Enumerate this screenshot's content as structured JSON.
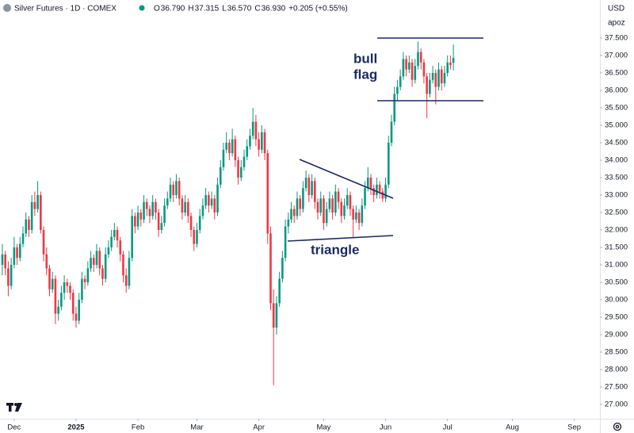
{
  "header": {
    "title": "Silver Futures · 1D · COMEX",
    "ohlc_labels": [
      "O",
      "H",
      "L",
      "C"
    ],
    "ohlc_values": [
      "36.790",
      "37.315",
      "36.570",
      "36.930"
    ],
    "change": "+0.205 (+0.55%)",
    "currency": "USD",
    "scale_label": "apoz"
  },
  "annotations": {
    "flag": [
      "bull",
      "flag"
    ],
    "triangle": "triangle"
  },
  "chart_data": {
    "type": "candlestick",
    "up_color": "#089981",
    "down_color": "#f23645",
    "grid": false,
    "xlim": [
      -0.8,
      202.7
    ],
    "xticks": [
      {
        "value": 4,
        "label": "Dec"
      },
      {
        "value": 25,
        "label": "2025"
      },
      {
        "value": 46,
        "label": "Feb"
      },
      {
        "value": 66,
        "label": "Mar"
      },
      {
        "value": 87,
        "label": "Apr"
      },
      {
        "value": 109,
        "label": "May"
      },
      {
        "value": 130,
        "label": "Jun"
      },
      {
        "value": 151,
        "label": "Jul"
      },
      {
        "value": 173,
        "label": "Aug"
      },
      {
        "value": 194,
        "label": "Sep"
      }
    ],
    "ylim": [
      26.59,
      38.59
    ],
    "yticks": [
      {
        "value": 27,
        "label": "27.000"
      },
      {
        "value": 27.5,
        "label": "27.500"
      },
      {
        "value": 28,
        "label": "28.000"
      },
      {
        "value": 28.5,
        "label": "28.500"
      },
      {
        "value": 29,
        "label": "29.000"
      },
      {
        "value": 29.5,
        "label": "29.500"
      },
      {
        "value": 30,
        "label": "30.000"
      },
      {
        "value": 30.5,
        "label": "30.500"
      },
      {
        "value": 31,
        "label": "31.000"
      },
      {
        "value": 31.5,
        "label": "31.500"
      },
      {
        "value": 32,
        "label": "32.000"
      },
      {
        "value": 32.5,
        "label": "32.500"
      },
      {
        "value": 33,
        "label": "33.000"
      },
      {
        "value": 33.5,
        "label": "33.500"
      },
      {
        "value": 34,
        "label": "34.000"
      },
      {
        "value": 34.5,
        "label": "34.500"
      },
      {
        "value": 35,
        "label": "35.000"
      },
      {
        "value": 35.5,
        "label": "35.500"
      },
      {
        "value": 36,
        "label": "36.000"
      },
      {
        "value": 36.5,
        "label": "36.500"
      },
      {
        "value": 37,
        "label": "37.000"
      },
      {
        "value": 37.5,
        "label": "37.500"
      }
    ],
    "ohlc": [
      [
        31.0,
        31.6,
        30.7,
        31.3
      ],
      [
        31.3,
        31.4,
        30.7,
        30.9
      ],
      [
        30.9,
        31.1,
        30.1,
        30.4
      ],
      [
        30.4,
        31.2,
        30.3,
        31.0
      ],
      [
        31.0,
        31.8,
        30.9,
        31.5
      ],
      [
        31.5,
        31.6,
        31.0,
        31.2
      ],
      [
        31.2,
        31.8,
        31.1,
        31.6
      ],
      [
        31.6,
        32.1,
        31.5,
        31.9
      ],
      [
        31.9,
        32.5,
        31.8,
        32.3
      ],
      [
        32.3,
        32.4,
        31.8,
        32.0
      ],
      [
        32.0,
        33.0,
        31.9,
        32.8
      ],
      [
        32.8,
        33.1,
        32.4,
        32.6
      ],
      [
        32.6,
        33.4,
        32.5,
        33.0
      ],
      [
        33.0,
        33.1,
        31.9,
        32.0
      ],
      [
        32.0,
        32.1,
        31.1,
        31.3
      ],
      [
        31.3,
        31.5,
        30.7,
        30.9
      ],
      [
        30.9,
        31.0,
        30.1,
        30.3
      ],
      [
        30.3,
        30.8,
        30.2,
        30.6
      ],
      [
        30.6,
        30.7,
        29.3,
        29.6
      ],
      [
        29.6,
        30.0,
        29.4,
        29.8
      ],
      [
        29.8,
        30.4,
        29.7,
        30.2
      ],
      [
        30.2,
        30.7,
        30.0,
        30.5
      ],
      [
        30.5,
        30.6,
        30.2,
        30.4
      ],
      [
        30.4,
        30.5,
        30.0,
        30.2
      ],
      [
        30.2,
        30.3,
        29.4,
        29.6
      ],
      [
        29.6,
        29.8,
        29.2,
        29.4
      ],
      [
        29.4,
        30.2,
        29.3,
        30.0
      ],
      [
        30.0,
        30.8,
        29.9,
        30.6
      ],
      [
        30.6,
        30.7,
        30.3,
        30.5
      ],
      [
        30.5,
        31.1,
        30.4,
        30.9
      ],
      [
        30.9,
        31.4,
        30.8,
        31.2
      ],
      [
        31.2,
        31.3,
        30.8,
        31.0
      ],
      [
        31.0,
        31.6,
        30.9,
        31.4
      ],
      [
        31.4,
        31.5,
        30.7,
        30.9
      ],
      [
        30.9,
        31.0,
        30.4,
        30.6
      ],
      [
        30.6,
        31.5,
        30.5,
        31.3
      ],
      [
        31.3,
        31.7,
        31.2,
        31.5
      ],
      [
        31.5,
        32.0,
        31.4,
        31.8
      ],
      [
        31.8,
        32.2,
        31.7,
        32.0
      ],
      [
        32.0,
        32.1,
        31.5,
        31.7
      ],
      [
        31.7,
        31.8,
        31.1,
        31.3
      ],
      [
        31.3,
        31.4,
        30.5,
        30.7
      ],
      [
        30.7,
        30.9,
        30.2,
        30.4
      ],
      [
        30.4,
        31.4,
        30.3,
        31.2
      ],
      [
        31.2,
        32.6,
        31.1,
        32.4
      ],
      [
        32.4,
        32.5,
        31.9,
        32.1
      ],
      [
        32.1,
        32.7,
        32.0,
        32.5
      ],
      [
        32.5,
        32.6,
        32.1,
        32.3
      ],
      [
        32.3,
        33.0,
        32.2,
        32.8
      ],
      [
        32.8,
        32.9,
        32.4,
        32.6
      ],
      [
        32.6,
        32.7,
        32.2,
        32.4
      ],
      [
        32.4,
        33.0,
        32.3,
        32.8
      ],
      [
        32.8,
        32.9,
        32.3,
        32.5
      ],
      [
        32.5,
        32.6,
        31.8,
        32.0
      ],
      [
        32.0,
        32.4,
        31.9,
        32.2
      ],
      [
        32.2,
        32.9,
        32.1,
        32.7
      ],
      [
        32.7,
        33.1,
        32.6,
        32.9
      ],
      [
        32.9,
        33.5,
        32.8,
        33.3
      ],
      [
        33.3,
        33.4,
        32.8,
        33.0
      ],
      [
        33.0,
        33.6,
        32.9,
        33.4
      ],
      [
        33.4,
        33.5,
        32.7,
        32.9
      ],
      [
        32.9,
        33.0,
        32.3,
        32.5
      ],
      [
        32.5,
        33.0,
        32.4,
        32.8
      ],
      [
        32.8,
        32.9,
        32.2,
        32.4
      ],
      [
        32.4,
        32.5,
        31.8,
        32.0
      ],
      [
        32.0,
        32.1,
        31.4,
        31.6
      ],
      [
        31.6,
        32.2,
        31.5,
        32.0
      ],
      [
        32.0,
        32.6,
        31.9,
        32.4
      ],
      [
        32.4,
        32.9,
        32.3,
        32.7
      ],
      [
        32.7,
        33.2,
        32.6,
        33.0
      ],
      [
        33.0,
        33.1,
        32.5,
        32.7
      ],
      [
        32.7,
        33.1,
        32.6,
        32.9
      ],
      [
        32.9,
        33.0,
        32.3,
        32.5
      ],
      [
        32.5,
        33.5,
        32.4,
        33.3
      ],
      [
        33.3,
        34.0,
        33.2,
        33.8
      ],
      [
        33.8,
        34.5,
        33.7,
        34.3
      ],
      [
        34.3,
        34.8,
        34.2,
        34.5
      ],
      [
        34.5,
        34.6,
        34.0,
        34.2
      ],
      [
        34.2,
        34.9,
        34.1,
        34.6
      ],
      [
        34.6,
        34.7,
        33.8,
        34.0
      ],
      [
        34.0,
        34.1,
        33.3,
        33.5
      ],
      [
        33.5,
        34.0,
        33.4,
        33.8
      ],
      [
        33.8,
        34.3,
        33.7,
        34.1
      ],
      [
        34.1,
        34.6,
        34.0,
        34.4
      ],
      [
        34.4,
        34.9,
        34.3,
        34.7
      ],
      [
        34.7,
        35.5,
        34.6,
        35.1
      ],
      [
        35.1,
        35.3,
        34.4,
        34.6
      ],
      [
        34.6,
        34.8,
        34.1,
        34.3
      ],
      [
        34.3,
        35.0,
        34.2,
        34.8
      ],
      [
        34.8,
        34.9,
        34.0,
        34.2
      ],
      [
        34.2,
        34.3,
        31.6,
        31.9
      ],
      [
        31.9,
        32.1,
        29.7,
        29.9
      ],
      [
        29.9,
        30.3,
        27.55,
        29.2
      ],
      [
        29.2,
        30.1,
        29.0,
        29.9
      ],
      [
        29.9,
        30.8,
        29.8,
        30.6
      ],
      [
        30.6,
        31.4,
        30.5,
        31.2
      ],
      [
        31.2,
        32.3,
        31.1,
        32.1
      ],
      [
        32.1,
        32.5,
        31.9,
        32.3
      ],
      [
        32.3,
        32.8,
        32.2,
        32.6
      ],
      [
        32.6,
        32.7,
        32.2,
        32.4
      ],
      [
        32.4,
        33.1,
        32.3,
        32.9
      ],
      [
        32.9,
        33.0,
        32.4,
        32.6
      ],
      [
        32.6,
        33.4,
        32.5,
        33.2
      ],
      [
        33.2,
        33.7,
        33.1,
        33.5
      ],
      [
        33.5,
        33.6,
        32.8,
        33.0
      ],
      [
        33.0,
        33.6,
        32.9,
        33.4
      ],
      [
        33.4,
        33.5,
        32.6,
        32.8
      ],
      [
        32.8,
        32.9,
        32.3,
        32.5
      ],
      [
        32.5,
        33.1,
        32.4,
        32.9
      ],
      [
        32.9,
        33.0,
        32.0,
        32.2
      ],
      [
        32.2,
        32.8,
        32.1,
        32.6
      ],
      [
        32.6,
        33.1,
        32.5,
        32.9
      ],
      [
        32.9,
        33.0,
        32.3,
        32.5
      ],
      [
        32.5,
        33.3,
        32.4,
        33.1
      ],
      [
        33.1,
        33.2,
        32.6,
        32.8
      ],
      [
        32.8,
        32.9,
        32.2,
        32.4
      ],
      [
        32.4,
        32.9,
        32.3,
        32.7
      ],
      [
        32.7,
        33.2,
        32.6,
        33.0
      ],
      [
        33.0,
        33.1,
        32.4,
        32.6
      ],
      [
        32.6,
        32.7,
        31.8,
        32.3
      ],
      [
        32.3,
        32.7,
        32.2,
        32.5
      ],
      [
        32.5,
        32.6,
        32.0,
        32.2
      ],
      [
        32.2,
        32.9,
        32.1,
        32.7
      ],
      [
        32.7,
        33.4,
        32.6,
        33.2
      ],
      [
        33.2,
        33.8,
        33.1,
        33.5
      ],
      [
        33.5,
        33.6,
        33.0,
        33.2
      ],
      [
        33.2,
        33.3,
        32.8,
        33.0
      ],
      [
        33.0,
        33.5,
        32.9,
        33.3
      ],
      [
        33.3,
        33.4,
        32.9,
        33.1
      ],
      [
        33.1,
        33.2,
        32.8,
        32.9
      ],
      [
        32.9,
        33.5,
        32.8,
        33.3
      ],
      [
        33.3,
        34.7,
        33.2,
        34.5
      ],
      [
        34.5,
        35.3,
        34.4,
        35.1
      ],
      [
        35.1,
        36.1,
        35.0,
        35.9
      ],
      [
        35.9,
        36.3,
        35.7,
        36.1
      ],
      [
        36.1,
        36.6,
        36.0,
        36.4
      ],
      [
        36.4,
        37.1,
        36.3,
        36.9
      ],
      [
        36.9,
        37.0,
        36.4,
        36.6
      ],
      [
        36.6,
        37.0,
        36.5,
        36.8
      ],
      [
        36.8,
        36.9,
        36.1,
        36.3
      ],
      [
        36.3,
        36.9,
        36.2,
        36.7
      ],
      [
        36.7,
        37.4,
        36.6,
        37.1
      ],
      [
        37.1,
        37.2,
        36.6,
        36.8
      ],
      [
        36.8,
        36.9,
        36.2,
        36.4
      ],
      [
        36.4,
        36.5,
        35.2,
        35.9
      ],
      [
        35.9,
        36.5,
        35.8,
        36.3
      ],
      [
        36.3,
        36.7,
        36.2,
        36.5
      ],
      [
        36.5,
        36.6,
        35.6,
        36.1
      ],
      [
        36.1,
        36.8,
        36.0,
        36.6
      ],
      [
        36.6,
        36.7,
        36.0,
        36.2
      ],
      [
        36.2,
        36.7,
        36.1,
        36.5
      ],
      [
        36.5,
        37.0,
        36.4,
        36.8
      ],
      [
        36.8,
        37.0,
        36.6,
        36.725
      ],
      [
        36.79,
        37.315,
        36.57,
        36.93
      ]
    ]
  }
}
